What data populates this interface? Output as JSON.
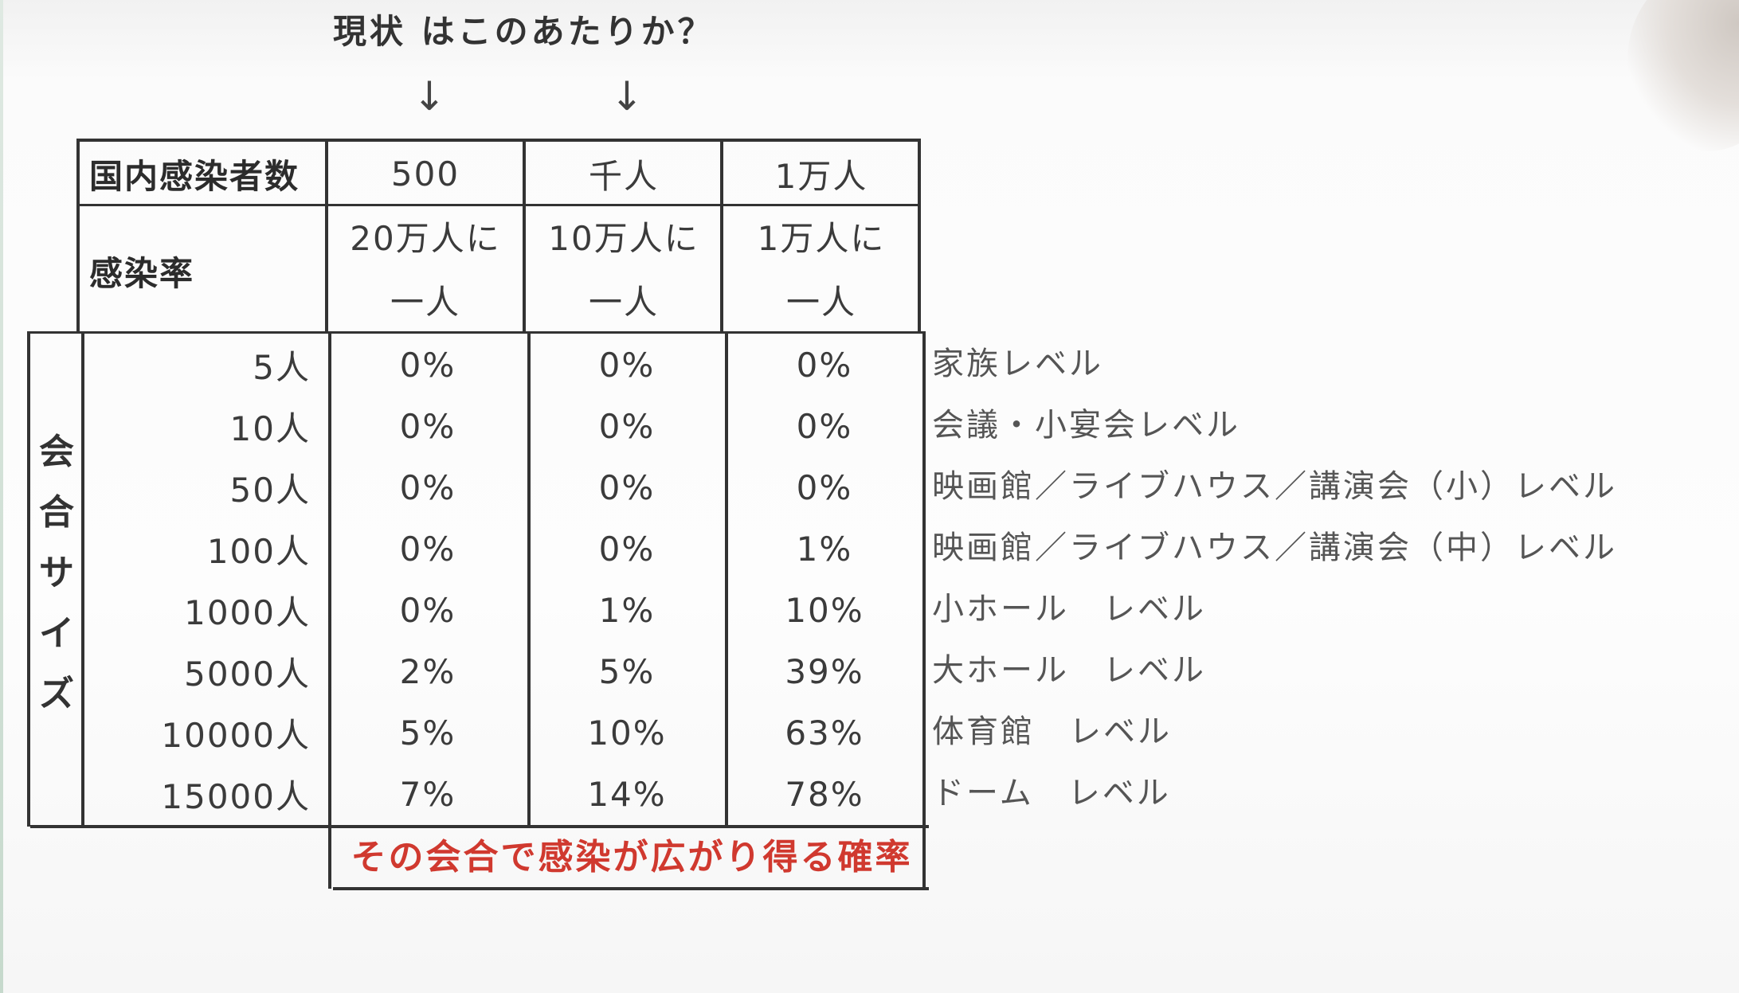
{
  "annotation": "現状 はこのあたりか？",
  "arrows": [
    "↓",
    "↓"
  ],
  "header": {
    "row1_label": "国内感染者数",
    "row1_values": [
      "500",
      "千人",
      "1万人"
    ],
    "row2_label": "感染率",
    "row2_values": [
      {
        "line1": "20万人に",
        "line2": "一人"
      },
      {
        "line1": "10万人に",
        "line2": "一人"
      },
      {
        "line1": "1万人に",
        "line2": "一人"
      }
    ]
  },
  "side_label": [
    "会",
    "合",
    "サ",
    "イ",
    "ズ"
  ],
  "rows": [
    {
      "size": "5人",
      "values": [
        "0%",
        "0%",
        "0%"
      ],
      "level": "家族レベル"
    },
    {
      "size": "10人",
      "values": [
        "0%",
        "0%",
        "0%"
      ],
      "level": "会議・小宴会レベル"
    },
    {
      "size": "50人",
      "values": [
        "0%",
        "0%",
        "0%"
      ],
      "level": "映画館／ライブハウス／講演会（小）レベル"
    },
    {
      "size": "100人",
      "values": [
        "0%",
        "0%",
        "1%"
      ],
      "level": "映画館／ライブハウス／講演会（中）レベル"
    },
    {
      "size": "1000人",
      "values": [
        "0%",
        "1%",
        "10%"
      ],
      "level": "小ホール　レベル"
    },
    {
      "size": "5000人",
      "values": [
        "2%",
        "5%",
        "39%"
      ],
      "level": "大ホール　レベル"
    },
    {
      "size": "10000人",
      "values": [
        "5%",
        "10%",
        "63%"
      ],
      "level": "体育館　レベル"
    },
    {
      "size": "15000人",
      "values": [
        "7%",
        "14%",
        "78%"
      ],
      "level": "ドーム　レベル"
    }
  ],
  "footer": "その会合で感染が広がり得る確率",
  "colors": {
    "footer_text": "#d0392f",
    "lines": "#333333"
  }
}
